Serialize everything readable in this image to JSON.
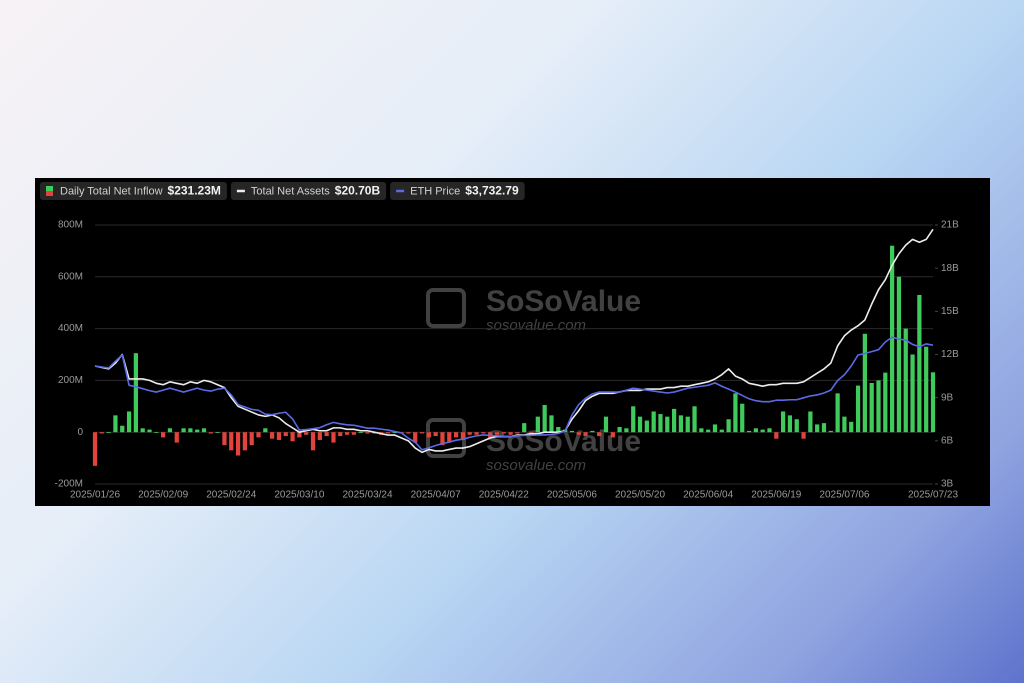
{
  "chart_data": {
    "type": "bar_line",
    "watermark": {
      "brand": "SoSoValue",
      "site": "sosovalue.com"
    },
    "categories": [
      "2025/01/26",
      null,
      null,
      null,
      null,
      null,
      null,
      null,
      null,
      null,
      "2025/02/09",
      null,
      null,
      null,
      null,
      null,
      null,
      null,
      null,
      null,
      "2025/02/24",
      null,
      null,
      null,
      null,
      null,
      null,
      null,
      null,
      null,
      "2025/03/10",
      null,
      null,
      null,
      null,
      null,
      null,
      null,
      null,
      null,
      "2025/03/24",
      null,
      null,
      null,
      null,
      null,
      null,
      null,
      null,
      null,
      "2025/04/07",
      null,
      null,
      null,
      null,
      null,
      null,
      null,
      null,
      null,
      "2025/04/22",
      null,
      null,
      null,
      null,
      null,
      null,
      null,
      null,
      null,
      "2025/05/06",
      null,
      null,
      null,
      null,
      null,
      null,
      null,
      null,
      null,
      "2025/05/20",
      null,
      null,
      null,
      null,
      null,
      null,
      null,
      null,
      null,
      "2025/06/04",
      null,
      null,
      null,
      null,
      null,
      null,
      null,
      null,
      null,
      "2025/06/19",
      null,
      null,
      null,
      null,
      null,
      null,
      null,
      null,
      null,
      "2025/07/06",
      null,
      null,
      null,
      null,
      null,
      null,
      null,
      null,
      null,
      null,
      null,
      null,
      "2025/07/23"
    ],
    "series": [
      {
        "name": "Daily Total Net Inflow",
        "latest_label": "$231.23M",
        "color": "#3fcb5c",
        "negative_color": "#e2433b",
        "kind": "bar",
        "axis": "y",
        "values": [
          -130,
          -5,
          0,
          65,
          25,
          80,
          305,
          15,
          10,
          0,
          -20,
          15,
          -40,
          15,
          15,
          10,
          15,
          -5,
          0,
          -50,
          -70,
          -90,
          -70,
          -50,
          -20,
          15,
          -25,
          -30,
          -15,
          -35,
          -20,
          -10,
          -70,
          -30,
          -15,
          -40,
          -15,
          -10,
          -10,
          0,
          -5,
          -5,
          -10,
          -5,
          0,
          -5,
          -5,
          -40,
          -5,
          -20,
          -15,
          -50,
          -40,
          -20,
          -30,
          -10,
          -10,
          -5,
          -20,
          -10,
          -5,
          -10,
          -5,
          35,
          -10,
          60,
          105,
          65,
          20,
          10,
          5,
          -10,
          -15,
          5,
          -15,
          60,
          -20,
          20,
          15,
          100,
          60,
          45,
          80,
          70,
          60,
          90,
          65,
          60,
          100,
          15,
          10,
          30,
          10,
          50,
          150,
          110,
          5,
          15,
          10,
          15,
          -25,
          80,
          65,
          50,
          -25,
          80,
          30,
          35,
          5,
          150,
          60,
          40,
          180,
          380,
          190,
          200,
          230,
          720,
          600,
          400,
          300,
          530,
          330,
          231.23
        ]
      },
      {
        "name": "Total Net Assets",
        "latest_label": "$20.70B",
        "color": "#ececec",
        "kind": "line",
        "axis": "y2",
        "values": [
          11.2,
          11.1,
          11.0,
          11.4,
          12.0,
          10.3,
          10.3,
          10.3,
          10.2,
          10.0,
          9.9,
          10.1,
          10.0,
          9.9,
          10.1,
          10.0,
          10.2,
          10.1,
          9.9,
          9.7,
          9.0,
          8.4,
          8.2,
          8.0,
          7.8,
          7.7,
          7.8,
          7.6,
          7.2,
          6.9,
          6.6,
          6.7,
          6.8,
          6.7,
          6.7,
          6.9,
          6.9,
          6.8,
          6.8,
          6.7,
          6.7,
          6.6,
          6.5,
          6.4,
          6.4,
          6.2,
          6.0,
          5.5,
          5.2,
          5.4,
          5.3,
          5.3,
          5.4,
          5.5,
          5.5,
          5.6,
          5.8,
          6.0,
          6.2,
          6.3,
          6.3,
          6.3,
          6.4,
          6.4,
          6.5,
          6.5,
          6.6,
          6.6,
          6.6,
          6.7,
          7.5,
          8.1,
          8.8,
          9.1,
          9.3,
          9.3,
          9.3,
          9.4,
          9.5,
          9.5,
          9.5,
          9.6,
          9.6,
          9.6,
          9.7,
          9.7,
          9.8,
          9.8,
          9.9,
          10.0,
          10.1,
          10.3,
          10.6,
          11.0,
          10.5,
          10.3,
          10.0,
          9.9,
          9.8,
          9.9,
          9.9,
          10.0,
          10.0,
          10.0,
          10.1,
          10.4,
          10.7,
          11.0,
          11.4,
          12.6,
          13.3,
          13.7,
          14.0,
          14.4,
          15.5,
          16.5,
          17.2,
          18.2,
          19.0,
          19.6,
          20.0,
          19.8,
          20.0,
          20.7
        ]
      },
      {
        "name": "ETH Price",
        "latest_label": "$3,732.79",
        "color": "#5a6ae4",
        "kind": "line",
        "axis": "y3",
        "values": [
          3300,
          3280,
          3260,
          3400,
          3530,
          2900,
          2870,
          2830,
          2790,
          2760,
          2800,
          2840,
          2800,
          2760,
          2800,
          2840,
          2800,
          2780,
          2820,
          2840,
          2700,
          2500,
          2450,
          2400,
          2380,
          2300,
          2290,
          2320,
          2340,
          2200,
          1970,
          1980,
          2000,
          2020,
          2080,
          2130,
          2100,
          2080,
          2070,
          2040,
          2010,
          2010,
          1990,
          1970,
          1940,
          1910,
          1800,
          1720,
          1560,
          1600,
          1650,
          1690,
          1720,
          1760,
          1780,
          1820,
          1850,
          1870,
          1860,
          1850,
          1840,
          1840,
          1850,
          1860,
          1860,
          1870,
          1870,
          1880,
          1900,
          1950,
          2280,
          2500,
          2630,
          2720,
          2760,
          2760,
          2760,
          2760,
          2800,
          2840,
          2820,
          2800,
          2780,
          2760,
          2740,
          2760,
          2800,
          2840,
          2860,
          2880,
          2900,
          2950,
          2880,
          2820,
          2760,
          2690,
          2620,
          2580,
          2560,
          2560,
          2590,
          2590,
          2600,
          2600,
          2640,
          2680,
          2700,
          2740,
          2800,
          3000,
          3120,
          3300,
          3530,
          3560,
          3600,
          3640,
          3800,
          3900,
          3860,
          3840,
          3750,
          3700,
          3760,
          3732.79
        ]
      }
    ],
    "ylim": [
      -200,
      800
    ],
    "yticks": [
      {
        "value": -200,
        "label": "-200M"
      },
      0,
      {
        "value": 200,
        "label": "200M"
      },
      {
        "value": 400,
        "label": "400M"
      },
      {
        "value": 600,
        "label": "600M"
      },
      {
        "value": 800,
        "label": "800M"
      }
    ],
    "y2lim": [
      3,
      21
    ],
    "y2ticks": [
      {
        "value": 3,
        "label": "3B"
      },
      {
        "value": 6,
        "label": "6B"
      },
      {
        "value": 9,
        "label": "9B"
      },
      {
        "value": 12,
        "label": "12B"
      },
      {
        "value": 15,
        "label": "15B"
      },
      {
        "value": 18,
        "label": "18B"
      },
      {
        "value": 21,
        "label": "21B"
      }
    ],
    "y3lim": [
      850,
      6230
    ],
    "grid": true
  }
}
